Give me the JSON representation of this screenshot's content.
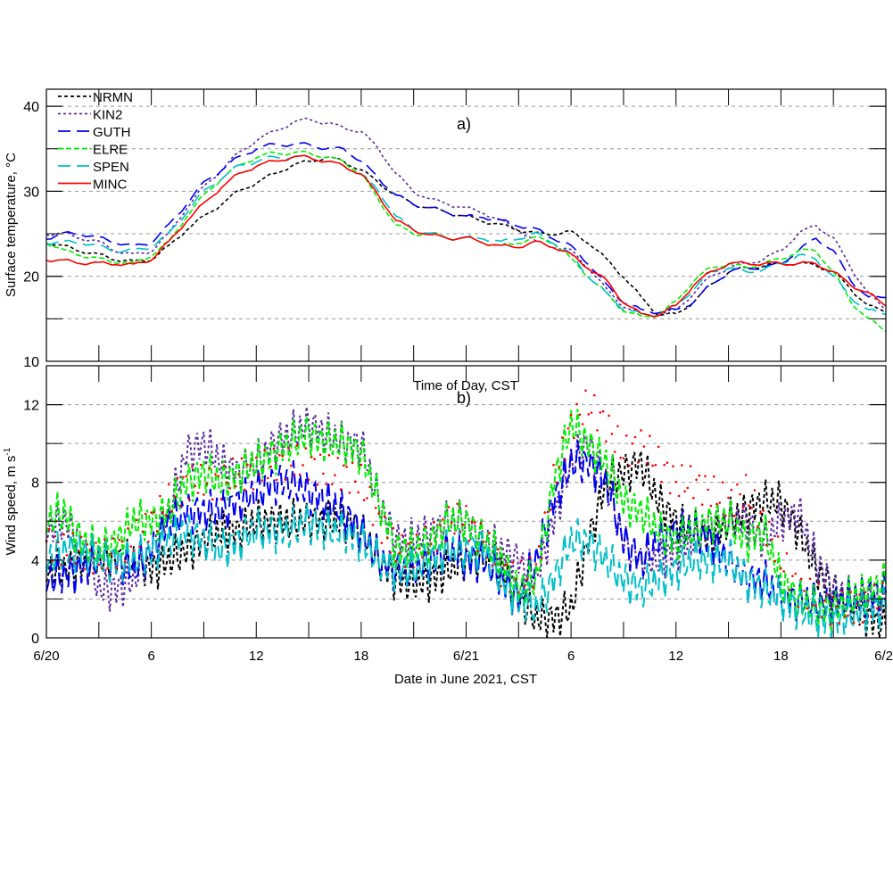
{
  "chart_data": [
    {
      "type": "line",
      "panel_label": "a)",
      "ylabel": "Surface temperature, °C",
      "xlabel_inner": "Time of Day, CST",
      "ylim": [
        10,
        42
      ],
      "yticks": [
        10,
        20,
        30,
        40
      ],
      "ygrid": [
        15,
        20,
        25,
        30,
        35,
        40
      ],
      "grid": true,
      "legend_placement": "top-left",
      "x_hours": "0..48 hourly from 6/20 00 CST",
      "series": [
        {
          "name": "NRMN",
          "color": "#000000",
          "values": [
            24,
            23.5,
            23,
            22.5,
            22,
            21.7,
            22,
            23.5,
            25.5,
            27,
            28.5,
            30,
            31,
            32,
            33,
            33.5,
            34,
            33.5,
            32.5,
            31,
            29.5,
            28.5,
            28,
            27.5,
            27,
            26.5,
            26,
            25.5,
            25,
            25,
            25.2,
            24,
            22,
            20,
            17.5,
            15.5,
            15.5,
            17,
            19,
            20.5,
            21,
            21.2,
            21.5,
            21.5,
            21.3,
            20.5,
            18.5,
            16.5,
            15.8
          ]
        },
        {
          "name": "KIN2",
          "color": "#5b2ca0",
          "values": [
            25,
            25,
            24.5,
            24,
            23,
            22.5,
            23,
            25,
            28,
            30.5,
            32.5,
            34.5,
            36,
            37,
            38,
            38.5,
            38,
            37.5,
            37,
            35,
            32,
            30,
            29,
            28.5,
            28,
            27.5,
            26.5,
            25.5,
            24,
            23.5,
            23,
            21,
            18.5,
            16.5,
            15.5,
            15.5,
            16,
            18,
            20,
            21,
            21.5,
            22,
            23,
            25,
            26,
            24.5,
            21,
            18,
            16
          ]
        },
        {
          "name": "GUTH",
          "color": "#0000ee",
          "values": [
            24.5,
            25,
            25,
            24.5,
            24,
            23.5,
            24,
            26,
            28.5,
            31,
            32.5,
            34,
            35,
            35.5,
            35.5,
            35.5,
            35,
            35,
            33.5,
            31.5,
            29.5,
            28.5,
            28,
            27.5,
            27,
            27,
            26.5,
            26,
            25.5,
            24.5,
            23.5,
            21.5,
            19,
            17,
            16,
            15.8,
            16,
            17,
            19,
            20.5,
            21,
            21,
            21.5,
            23,
            24.5,
            23,
            19.5,
            17.5,
            17.5
          ]
        },
        {
          "name": "ELRE",
          "color": "#00ee00",
          "values": [
            24,
            23,
            22.5,
            22,
            21.7,
            21.5,
            22.5,
            24,
            27,
            29.5,
            31.5,
            33,
            34,
            34.5,
            34.5,
            34.5,
            34,
            33.5,
            32,
            29,
            26,
            25,
            25,
            24.5,
            24.5,
            24,
            23.5,
            24,
            24.5,
            24,
            22,
            20,
            18,
            16,
            15.2,
            15.5,
            17,
            19.5,
            21,
            21.5,
            21,
            21.5,
            22,
            23,
            23,
            20.5,
            17,
            15,
            13.5
          ]
        },
        {
          "name": "SPEN",
          "color": "#00c0c8",
          "values": [
            24,
            24,
            24,
            23.5,
            23,
            23,
            23.5,
            25,
            27.5,
            30,
            31.5,
            33,
            33.5,
            34,
            34,
            34,
            33.5,
            33,
            32,
            30,
            27,
            25.5,
            25,
            24.5,
            24.5,
            24.5,
            24,
            24.5,
            25,
            24,
            22.5,
            20,
            18,
            16.2,
            15.5,
            15.5,
            16.5,
            18.5,
            20.5,
            21,
            20.5,
            20.8,
            21.5,
            22.5,
            22,
            20,
            17.5,
            16,
            15.5
          ]
        },
        {
          "name": "MINC",
          "color": "#ff0000",
          "values": [
            22,
            21.8,
            21.6,
            21.5,
            21.5,
            21.3,
            22,
            24,
            26.5,
            28.5,
            30.5,
            32,
            33,
            33.5,
            34,
            34,
            33.5,
            33,
            32,
            29.5,
            26.5,
            25.5,
            24.8,
            24.5,
            24.5,
            24,
            23.5,
            23.5,
            24,
            23.5,
            22.5,
            21,
            19.5,
            17,
            15.5,
            15.5,
            16.5,
            19,
            20.5,
            21.5,
            21.5,
            21.5,
            21.5,
            21.5,
            21.5,
            20.5,
            19,
            18,
            16.5
          ]
        }
      ]
    },
    {
      "type": "line",
      "panel_label": "b)",
      "ylabel": "Wind speed, m s",
      "ylabel_sup": "-1",
      "xlabel": "Date in June 2021, CST",
      "xticklabels": [
        "6/20",
        "6",
        "12",
        "18",
        "6/21",
        "6",
        "12",
        "18",
        "6/2"
      ],
      "xlim_hours": [
        0,
        48
      ],
      "ylim": [
        0,
        14
      ],
      "yticks": [
        0,
        4,
        8,
        12
      ],
      "ygrid": [
        2,
        4,
        6,
        8,
        10,
        12
      ],
      "grid": true,
      "series": [
        {
          "name": "NRMN",
          "color": "#000000",
          "values": [
            3.5,
            3.5,
            3.8,
            4,
            4,
            4,
            3.5,
            4,
            4.5,
            5,
            5.5,
            5.5,
            6,
            6,
            6,
            6,
            6,
            6,
            5.5,
            4,
            3,
            2.8,
            3,
            3.5,
            4,
            4,
            3.5,
            2,
            1,
            1,
            1.5,
            5,
            8,
            8.5,
            9,
            7,
            6,
            5.5,
            5,
            6,
            6.5,
            7,
            7,
            5.5,
            3.5,
            2.5,
            1.5,
            1,
            0.5
          ]
        },
        {
          "name": "KIN2",
          "color": "#5b2ca0",
          "values": [
            5.5,
            6,
            5,
            2.5,
            2.5,
            3,
            4.5,
            6.5,
            9.5,
            10,
            9,
            8.5,
            9,
            10,
            10.5,
            11,
            10.5,
            10,
            10,
            7,
            5,
            5,
            5.5,
            6,
            6,
            5,
            4.5,
            4,
            3,
            6,
            9,
            10,
            8,
            5,
            4,
            4,
            4.5,
            5,
            6,
            6,
            6,
            5,
            6,
            6.5,
            4,
            2.5,
            2,
            2,
            1.5
          ]
        },
        {
          "name": "GUTH",
          "color": "#0000ee",
          "values": [
            3,
            3.2,
            3.5,
            4,
            4,
            3.5,
            4.5,
            6,
            6.5,
            6.5,
            6.5,
            7,
            7.5,
            8,
            8,
            7.5,
            7,
            6.5,
            5.5,
            4,
            3.5,
            3.5,
            4,
            4.5,
            4,
            4,
            3,
            2,
            4,
            7,
            9,
            9,
            8,
            5,
            4,
            5,
            5.5,
            5.5,
            5,
            4,
            3,
            3,
            2,
            2,
            1.8,
            1.8,
            2,
            2.2,
            2.3
          ]
        },
        {
          "name": "ELRE",
          "color": "#00ee00",
          "values": [
            6,
            6.5,
            5,
            4.5,
            5,
            6,
            6,
            6.5,
            8,
            8.5,
            8,
            8.5,
            9,
            9.5,
            10,
            10.5,
            10,
            10,
            9.5,
            7,
            4.5,
            4.5,
            5,
            6,
            6,
            5,
            4,
            2.5,
            3,
            8,
            11,
            10,
            9,
            7,
            6.5,
            5.5,
            5,
            5.5,
            6,
            6,
            5,
            5.5,
            3,
            2,
            1.5,
            1.5,
            2,
            2.5,
            2.8
          ]
        },
        {
          "name": "SPEN",
          "color": "#00c0c8",
          "values": [
            4,
            4.5,
            4.5,
            4,
            4,
            4,
            4.5,
            5,
            5.5,
            5,
            4.5,
            5,
            5.5,
            5.5,
            5.5,
            6,
            5.5,
            5.5,
            5,
            4,
            3.5,
            3.5,
            4,
            4.5,
            4.5,
            4.5,
            3,
            2,
            1.5,
            3,
            5,
            5,
            4,
            3,
            2.5,
            3,
            3.5,
            4,
            4,
            4,
            3,
            2.5,
            2,
            1.5,
            1,
            0.8,
            1.2,
            1.5,
            1.5
          ]
        },
        {
          "name": "MINC",
          "color": "#ff0000",
          "values": [
            5,
            4.5,
            4.5,
            4,
            4.5,
            5,
            6,
            7,
            8,
            8,
            8,
            8.5,
            8.5,
            9,
            9,
            9,
            8.5,
            8.5,
            8,
            6,
            4.5,
            4.5,
            5,
            6,
            6,
            5,
            3.5,
            3,
            3.5,
            8,
            11,
            12,
            11,
            9.5,
            10,
            9,
            8,
            8,
            7.5,
            7,
            7.5,
            6,
            4,
            2.5,
            2,
            1.5,
            1.5,
            1.8,
            2
          ]
        }
      ]
    }
  ]
}
